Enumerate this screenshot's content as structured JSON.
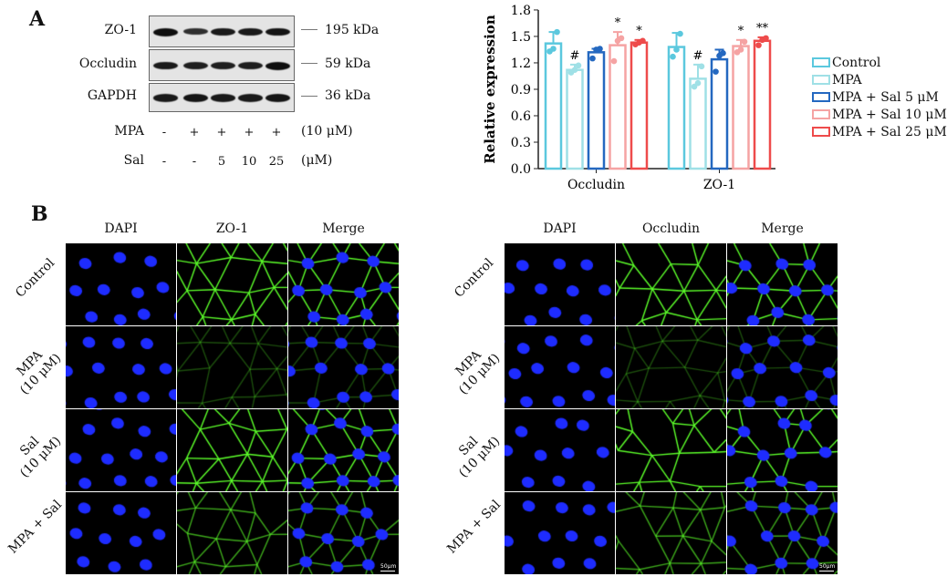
{
  "panel_a": {
    "letter": "A",
    "blot_rows": [
      {
        "label": "ZO-1",
        "marker": "195 kDa",
        "intensities": [
          1.0,
          0.7,
          0.9,
          0.9,
          0.95
        ]
      },
      {
        "label": "Occludin",
        "marker": "59 kDa",
        "intensities": [
          0.9,
          0.85,
          0.85,
          0.85,
          1.0
        ]
      },
      {
        "label": "GAPDH",
        "marker": "36 kDa",
        "intensities": [
          0.9,
          0.95,
          0.9,
          0.9,
          0.95
        ]
      }
    ],
    "conditions": [
      {
        "label": "MPA",
        "values": [
          "-",
          "+",
          "+",
          "+",
          "+"
        ],
        "unit": "(10 μM)"
      },
      {
        "label": "Sal",
        "values": [
          "-",
          "-",
          "5",
          "10",
          "25"
        ],
        "unit": "(μM)"
      }
    ]
  },
  "chart_data": {
    "type": "bar",
    "categories": [
      "Occludin",
      "ZO-1"
    ],
    "ylabel": "Relative expression",
    "ylim": [
      0,
      1.8
    ],
    "yticks": [
      "0.0",
      "0.3",
      "0.6",
      "0.9",
      "1.2",
      "1.5",
      "1.8"
    ],
    "legend_position": "right",
    "series": [
      {
        "name": "Control",
        "color": "#5bc8de",
        "values": [
          1.42,
          1.38
        ],
        "err": [
          0.13,
          0.16
        ],
        "points": [
          [
            1.33,
            1.36,
            1.55
          ],
          [
            1.27,
            1.35,
            1.53
          ]
        ],
        "annotations": [
          "",
          ""
        ]
      },
      {
        "name": "MPA",
        "color": "#9fe0e6",
        "values": [
          1.12,
          1.02
        ],
        "err": [
          0.06,
          0.16
        ],
        "points": [
          [
            1.09,
            1.12,
            1.17
          ],
          [
            0.93,
            0.97,
            1.16
          ]
        ],
        "annotations": [
          "#",
          "#"
        ]
      },
      {
        "name": "MPA + Sal 5 μM",
        "color": "#2468c0",
        "values": [
          1.32,
          1.24
        ],
        "err": [
          0.04,
          0.11
        ],
        "points": [
          [
            1.25,
            1.35,
            1.36
          ],
          [
            1.1,
            1.28,
            1.31
          ]
        ],
        "annotations": [
          "",
          ""
        ]
      },
      {
        "name": "MPA + Sal 10 μM",
        "color": "#f5a3a3",
        "values": [
          1.4,
          1.39
        ],
        "err": [
          0.15,
          0.07
        ],
        "points": [
          [
            1.22,
            1.45,
            1.48
          ],
          [
            1.32,
            1.35,
            1.44
          ]
        ],
        "annotations": [
          "*",
          "*"
        ]
      },
      {
        "name": "MPA + Sal 25 μM",
        "color": "#ee4b4b",
        "values": [
          1.43,
          1.45
        ],
        "err": [
          0.03,
          0.04
        ],
        "points": [
          [
            1.41,
            1.43,
            1.45
          ],
          [
            1.4,
            1.46,
            1.48
          ]
        ],
        "annotations": [
          "*",
          "**"
        ]
      }
    ]
  },
  "panel_b": {
    "letter": "B",
    "row_labels": [
      [
        "Control"
      ],
      [
        "MPA",
        "(10 μM)"
      ],
      [
        "Sal",
        "(10 μM)"
      ],
      [
        "MPA + Sal"
      ]
    ],
    "green_levels": [
      1.0,
      0.3,
      1.0,
      0.65
    ],
    "left": {
      "columns": [
        "DAPI",
        "ZO-1",
        "Merge"
      ]
    },
    "right": {
      "columns": [
        "DAPI",
        "Occludin",
        "Merge"
      ]
    },
    "scale_bar": "50μm",
    "colors": {
      "dapi": "#1e2cff",
      "marker": "#5cff2a"
    }
  }
}
